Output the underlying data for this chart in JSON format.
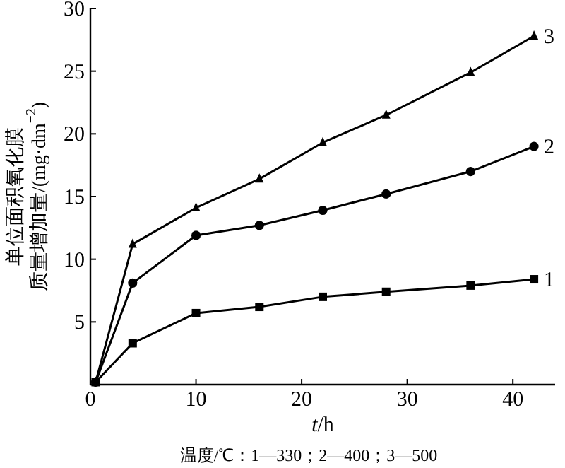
{
  "chart_data": {
    "type": "line",
    "xlabel": "t/h",
    "ylabel": "单位面积氧化膜质量增加量/(mg·dm$^{−2}$)",
    "annotations": [
      "温度/℃：1—330；2—400；3—500"
    ],
    "x": [
      0.5,
      4,
      10,
      16,
      22,
      28,
      36,
      42
    ],
    "series": [
      {
        "name": "1",
        "color": "#000000",
        "marker": "square",
        "values": [
          0.2,
          3.3,
          5.7,
          6.2,
          7.0,
          7.4,
          7.9,
          8.4
        ]
      },
      {
        "name": "2",
        "color": "#000000",
        "marker": "circle",
        "values": [
          0.2,
          8.1,
          11.9,
          12.7,
          13.9,
          15.2,
          17.0,
          19.0
        ]
      },
      {
        "name": "3",
        "color": "#000000",
        "marker": "triangle",
        "values": [
          0.2,
          11.2,
          14.1,
          16.4,
          19.3,
          21.5,
          24.9,
          27.8
        ]
      }
    ],
    "xlim": [
      0,
      44
    ],
    "ylim": [
      0,
      30
    ],
    "xticks": [
      0,
      10,
      20,
      30,
      40
    ],
    "yticks": [
      {
        "value": 0,
        "label": null
      },
      5,
      10,
      15,
      20,
      25,
      30
    ],
    "grid": false,
    "line_style": "solid"
  }
}
